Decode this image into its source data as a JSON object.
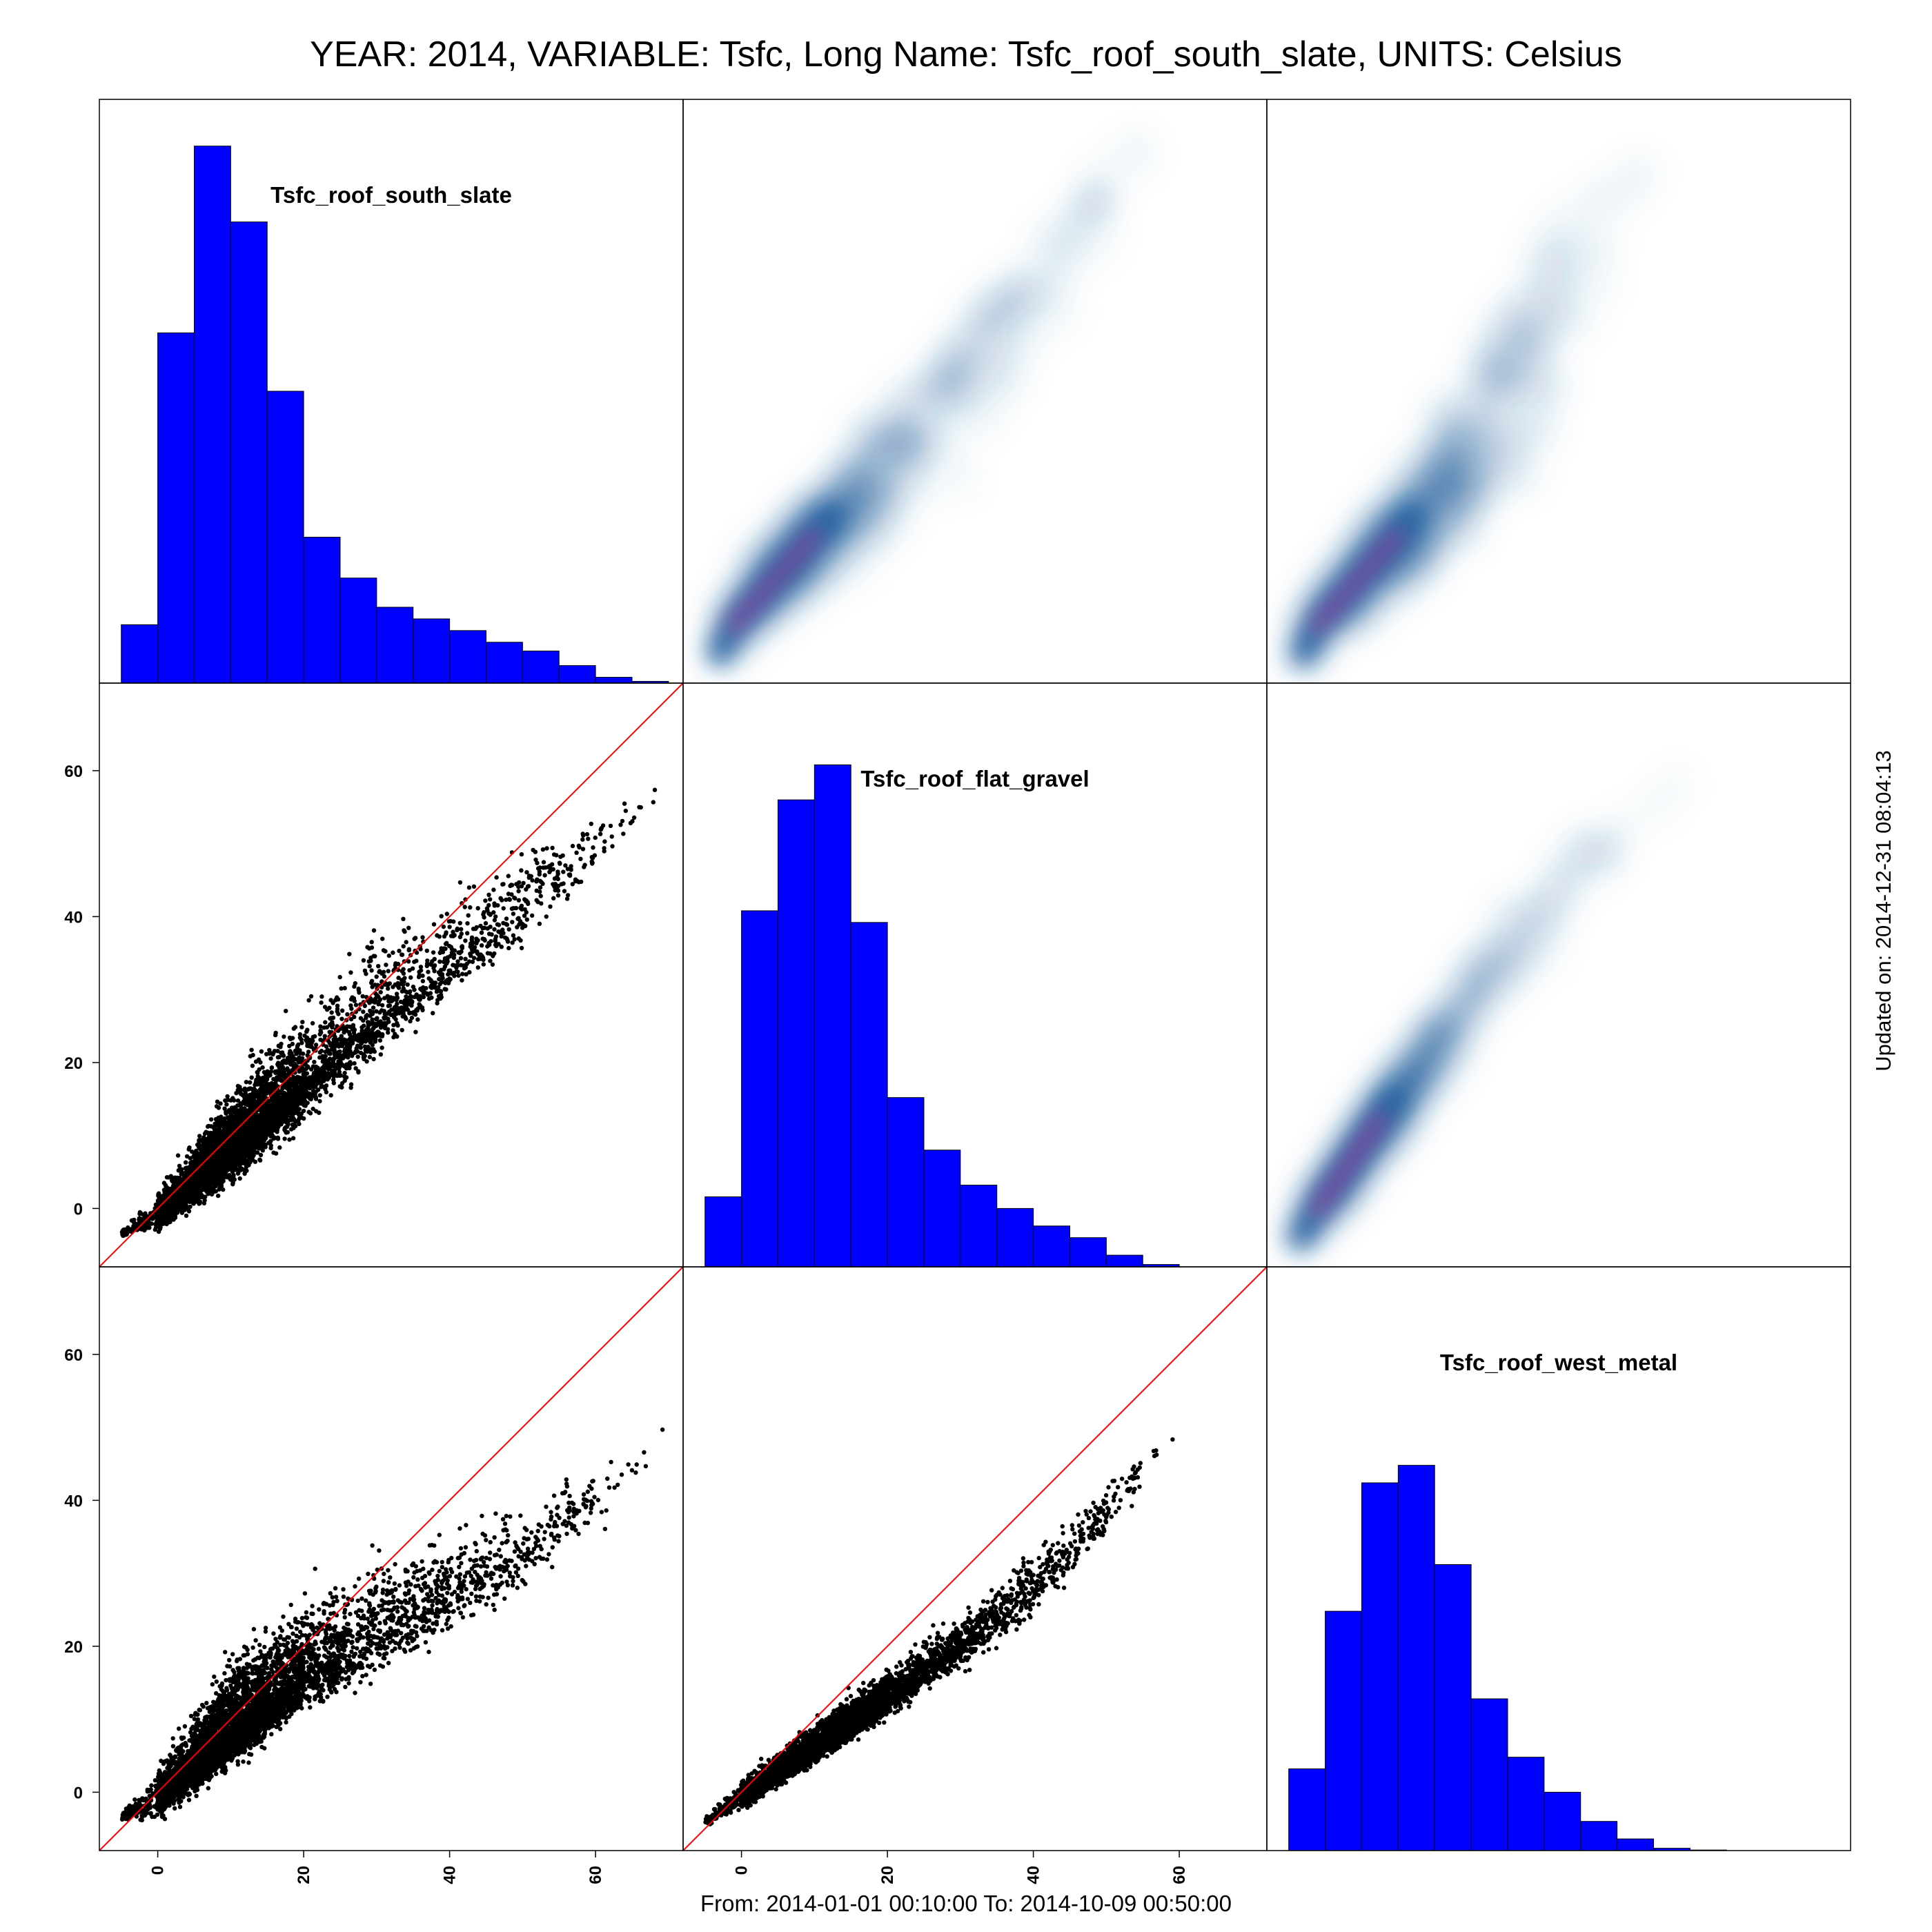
{
  "title": "YEAR: 2014, VARIABLE: Tsfc, Long Name: Tsfc_roof_south_slate, UNITS: Celsius",
  "footer": "From: 2014-01-01 00:10:00 To: 2014-10-09 00:50:00",
  "updated": "Updated on: 2014-12-31 08:04:13",
  "colors": {
    "histogram": "#0000ff",
    "points": "#000000",
    "identity_line": "#ff0000",
    "density_low": "#dbeaf6",
    "density_mid": "#1f5fa0",
    "density_high": "#8a3fa0"
  },
  "chart_data": {
    "type": "scatter",
    "layout": "3x3 scatterplot matrix (histograms on diagonal, point scatter below, smoothed density above)",
    "variables": [
      "Tsfc_roof_south_slate",
      "Tsfc_roof_flat_gravel",
      "Tsfc_roof_west_metal"
    ],
    "axis_range": [
      -8,
      72
    ],
    "axis_ticks": [
      0,
      20,
      40,
      60
    ],
    "identity_line": true,
    "grid": false,
    "histograms": [
      {
        "variable": "Tsfc_roof_south_slate",
        "bin_edges": [
          -5,
          0,
          5,
          10,
          15,
          20,
          25,
          30,
          35,
          40,
          45,
          50,
          55,
          60,
          65,
          70
        ],
        "relative_heights": [
          0.1,
          0.6,
          0.92,
          0.79,
          0.5,
          0.25,
          0.18,
          0.13,
          0.11,
          0.09,
          0.07,
          0.055,
          0.03,
          0.01,
          0.003
        ]
      },
      {
        "variable": "Tsfc_roof_flat_gravel",
        "bin_edges": [
          -5,
          0,
          5,
          10,
          15,
          20,
          25,
          30,
          35,
          40,
          45,
          50,
          55,
          60
        ],
        "relative_heights": [
          0.12,
          0.61,
          0.8,
          0.86,
          0.59,
          0.29,
          0.2,
          0.14,
          0.1,
          0.07,
          0.05,
          0.02,
          0.004
        ]
      },
      {
        "variable": "Tsfc_roof_west_metal",
        "bin_edges": [
          -5,
          0,
          5,
          10,
          15,
          20,
          25,
          30,
          35,
          40,
          45,
          50,
          55
        ],
        "relative_heights": [
          0.14,
          0.41,
          0.63,
          0.66,
          0.49,
          0.26,
          0.16,
          0.1,
          0.05,
          0.02,
          0.004,
          0.001
        ]
      }
    ],
    "scatter_panels": [
      {
        "x": "Tsfc_roof_south_slate",
        "y": "Tsfc_roof_flat_gravel",
        "trend": [
          [
            -5,
            -3.5
          ],
          [
            0,
            -1
          ],
          [
            10,
            8
          ],
          [
            20,
            17
          ],
          [
            30,
            26
          ],
          [
            40,
            33
          ],
          [
            50,
            42
          ],
          [
            60,
            50
          ],
          [
            70,
            58
          ]
        ],
        "upper_envelope": [
          [
            -5,
            -3
          ],
          [
            0,
            4
          ],
          [
            10,
            20
          ],
          [
            20,
            33
          ],
          [
            30,
            43
          ],
          [
            40,
            48
          ],
          [
            50,
            52
          ],
          [
            60,
            57
          ],
          [
            70,
            59
          ]
        ],
        "lower_envelope": [
          [
            -5,
            -4
          ],
          [
            0,
            -4
          ],
          [
            10,
            1
          ],
          [
            20,
            9
          ],
          [
            30,
            17
          ],
          [
            40,
            27
          ],
          [
            50,
            33
          ],
          [
            60,
            42
          ],
          [
            70,
            57
          ]
        ]
      },
      {
        "x": "Tsfc_roof_south_slate",
        "y": "Tsfc_roof_west_metal",
        "trend": [
          [
            -5,
            -3.5
          ],
          [
            0,
            -1
          ],
          [
            10,
            8
          ],
          [
            20,
            16
          ],
          [
            30,
            21
          ],
          [
            40,
            27
          ],
          [
            50,
            33
          ],
          [
            60,
            40
          ],
          [
            70,
            49
          ]
        ],
        "upper_envelope": [
          [
            -5,
            -3
          ],
          [
            0,
            6
          ],
          [
            10,
            22
          ],
          [
            20,
            32
          ],
          [
            30,
            38
          ],
          [
            40,
            40
          ],
          [
            50,
            44
          ],
          [
            60,
            48
          ],
          [
            70,
            51
          ]
        ],
        "lower_envelope": [
          [
            -5,
            -4
          ],
          [
            0,
            -5
          ],
          [
            10,
            1
          ],
          [
            20,
            8
          ],
          [
            30,
            13
          ],
          [
            40,
            19
          ],
          [
            50,
            25
          ],
          [
            60,
            33
          ],
          [
            70,
            47
          ]
        ]
      },
      {
        "x": "Tsfc_roof_flat_gravel",
        "y": "Tsfc_roof_west_metal",
        "trend": [
          [
            -5,
            -4
          ],
          [
            0,
            -1
          ],
          [
            10,
            6
          ],
          [
            20,
            13
          ],
          [
            30,
            20
          ],
          [
            40,
            28
          ],
          [
            50,
            38
          ],
          [
            58,
            48
          ]
        ],
        "upper_envelope": [
          [
            -5,
            -3
          ],
          [
            0,
            3
          ],
          [
            10,
            11
          ],
          [
            20,
            19
          ],
          [
            30,
            27
          ],
          [
            40,
            36
          ],
          [
            50,
            44
          ],
          [
            58,
            51
          ]
        ],
        "lower_envelope": [
          [
            -5,
            -5
          ],
          [
            0,
            -3
          ],
          [
            10,
            3
          ],
          [
            20,
            9
          ],
          [
            30,
            15
          ],
          [
            40,
            22
          ],
          [
            50,
            32
          ],
          [
            58,
            45
          ]
        ]
      }
    ]
  }
}
